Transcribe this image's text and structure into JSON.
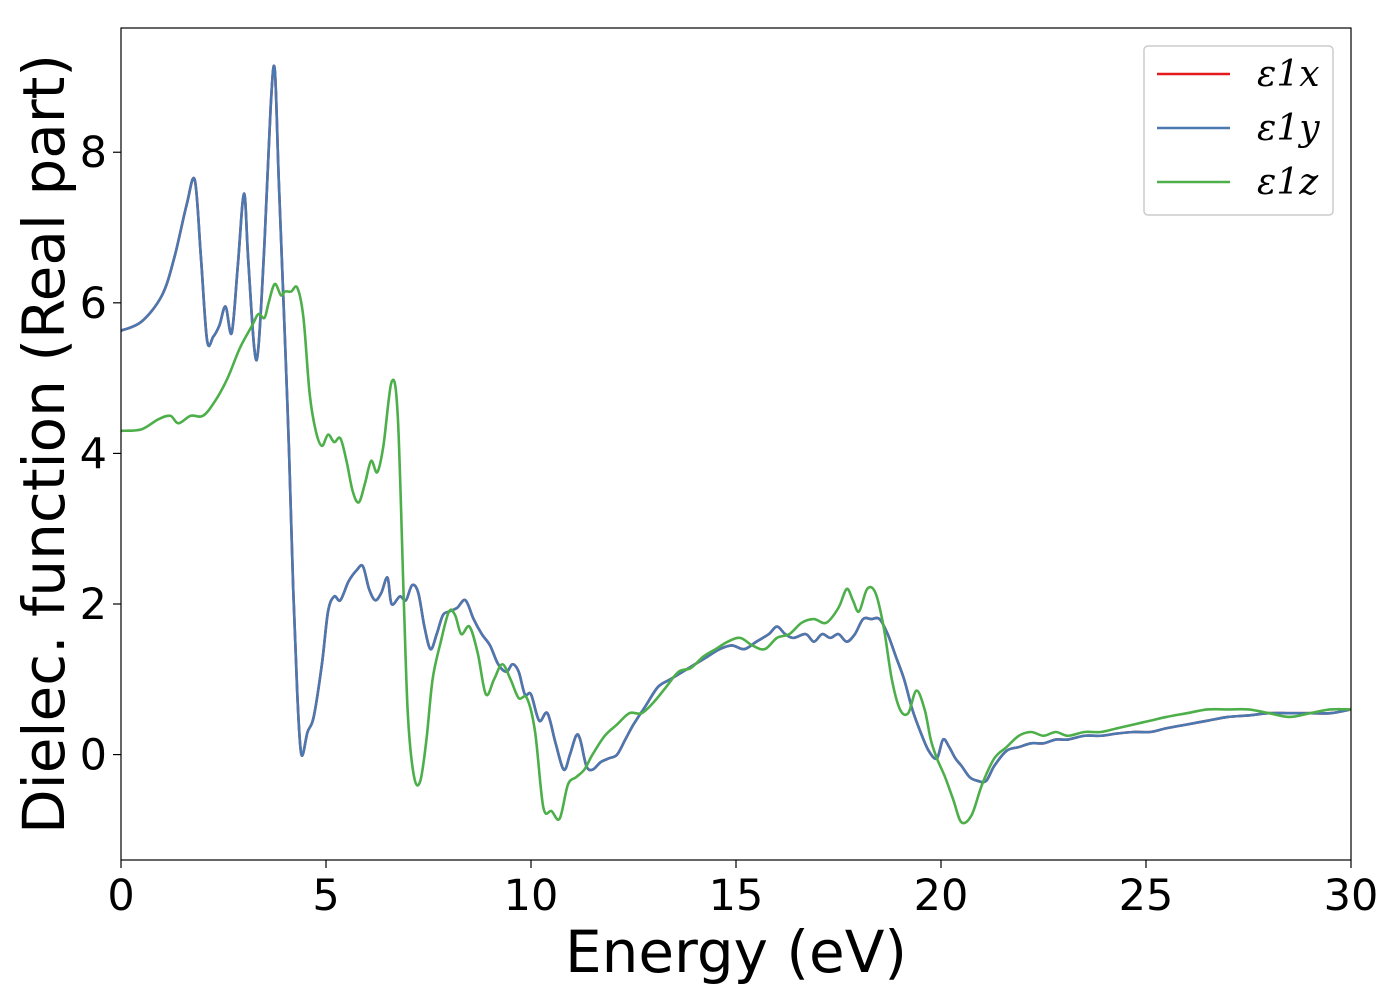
{
  "chart_data": {
    "type": "line",
    "title": "",
    "xlabel": "Energy (eV)",
    "ylabel": "Dielec. function (Real part)",
    "xlim": [
      0,
      30
    ],
    "ylim": [
      -1.4,
      9.65
    ],
    "xticks": [
      0,
      5,
      10,
      15,
      20,
      25,
      30
    ],
    "yticks": [
      0,
      2,
      4,
      6,
      8
    ],
    "grid": false,
    "legend_position": "top-right",
    "series": [
      {
        "name": "ε1x",
        "color": "#e41a1c",
        "x": [
          0,
          0.5,
          1.0,
          1.3,
          1.6,
          1.8,
          1.95,
          2.1,
          2.25,
          2.4,
          2.55,
          2.7,
          2.85,
          3.0,
          3.1,
          3.25,
          3.35,
          3.5,
          3.65,
          3.75,
          3.85,
          4.0,
          4.1,
          4.2,
          4.3,
          4.4,
          4.55,
          4.7,
          4.9,
          5.05,
          5.2,
          5.35,
          5.55,
          5.75,
          5.9,
          6.05,
          6.2,
          6.35,
          6.5,
          6.6,
          6.8,
          6.95,
          7.1,
          7.25,
          7.4,
          7.55,
          7.7,
          7.85,
          8.0,
          8.2,
          8.4,
          8.6,
          8.8,
          9.0,
          9.2,
          9.4,
          9.55,
          9.7,
          9.85,
          10.0,
          10.2,
          10.4,
          10.6,
          10.8,
          10.95,
          11.1,
          11.2,
          11.35,
          11.5,
          11.7,
          11.9,
          12.1,
          12.3,
          12.5,
          12.8,
          13.1,
          13.4,
          13.7,
          14.0,
          14.3,
          14.6,
          14.9,
          15.2,
          15.5,
          15.8,
          16.0,
          16.2,
          16.4,
          16.7,
          16.9,
          17.1,
          17.3,
          17.5,
          17.7,
          17.9,
          18.1,
          18.3,
          18.5,
          18.7,
          18.9,
          19.1,
          19.3,
          19.5,
          19.7,
          19.9,
          20.05,
          20.2,
          20.35,
          20.5,
          20.7,
          20.9,
          21.1,
          21.3,
          21.6,
          21.9,
          22.2,
          22.5,
          22.8,
          23.1,
          23.5,
          23.9,
          24.3,
          24.7,
          25.1,
          25.5,
          26.0,
          26.5,
          27.0,
          27.5,
          28.0,
          28.5,
          29.0,
          29.5,
          30.0
        ],
        "y": [
          5.63,
          5.75,
          6.1,
          6.6,
          7.3,
          7.63,
          6.6,
          5.5,
          5.55,
          5.7,
          5.95,
          5.6,
          6.5,
          7.45,
          6.6,
          5.4,
          5.4,
          6.8,
          8.6,
          9.1,
          7.6,
          5.5,
          4.0,
          2.2,
          0.8,
          0.0,
          0.3,
          0.5,
          1.2,
          1.9,
          2.1,
          2.05,
          2.3,
          2.45,
          2.5,
          2.2,
          2.05,
          2.15,
          2.35,
          2.0,
          2.1,
          2.05,
          2.25,
          2.15,
          1.7,
          1.4,
          1.6,
          1.85,
          1.9,
          1.95,
          2.05,
          1.8,
          1.6,
          1.45,
          1.2,
          1.1,
          1.2,
          1.1,
          0.8,
          0.8,
          0.45,
          0.55,
          0.15,
          -0.2,
          0.0,
          0.25,
          0.2,
          -0.15,
          -0.2,
          -0.1,
          -0.05,
          0.0,
          0.2,
          0.4,
          0.65,
          0.9,
          1.0,
          1.1,
          1.2,
          1.3,
          1.4,
          1.45,
          1.4,
          1.5,
          1.6,
          1.7,
          1.6,
          1.55,
          1.6,
          1.5,
          1.6,
          1.55,
          1.6,
          1.5,
          1.6,
          1.8,
          1.8,
          1.8,
          1.6,
          1.3,
          1.0,
          0.6,
          0.3,
          0.05,
          -0.05,
          0.2,
          0.1,
          -0.05,
          -0.15,
          -0.3,
          -0.35,
          -0.35,
          -0.15,
          0.05,
          0.1,
          0.15,
          0.15,
          0.2,
          0.2,
          0.25,
          0.25,
          0.28,
          0.3,
          0.3,
          0.35,
          0.4,
          0.45,
          0.5,
          0.52,
          0.55,
          0.55,
          0.55,
          0.55,
          0.6
        ]
      },
      {
        "name": "ε1y",
        "color": "#4a78b0",
        "x": [
          0,
          0.5,
          1.0,
          1.3,
          1.6,
          1.8,
          1.95,
          2.1,
          2.25,
          2.4,
          2.55,
          2.7,
          2.85,
          3.0,
          3.1,
          3.25,
          3.35,
          3.5,
          3.65,
          3.75,
          3.85,
          4.0,
          4.1,
          4.2,
          4.3,
          4.4,
          4.55,
          4.7,
          4.9,
          5.05,
          5.2,
          5.35,
          5.55,
          5.75,
          5.9,
          6.05,
          6.2,
          6.35,
          6.5,
          6.6,
          6.8,
          6.95,
          7.1,
          7.25,
          7.4,
          7.55,
          7.7,
          7.85,
          8.0,
          8.2,
          8.4,
          8.6,
          8.8,
          9.0,
          9.2,
          9.4,
          9.55,
          9.7,
          9.85,
          10.0,
          10.2,
          10.4,
          10.6,
          10.8,
          10.95,
          11.1,
          11.2,
          11.35,
          11.5,
          11.7,
          11.9,
          12.1,
          12.3,
          12.5,
          12.8,
          13.1,
          13.4,
          13.7,
          14.0,
          14.3,
          14.6,
          14.9,
          15.2,
          15.5,
          15.8,
          16.0,
          16.2,
          16.4,
          16.7,
          16.9,
          17.1,
          17.3,
          17.5,
          17.7,
          17.9,
          18.1,
          18.3,
          18.5,
          18.7,
          18.9,
          19.1,
          19.3,
          19.5,
          19.7,
          19.9,
          20.05,
          20.2,
          20.35,
          20.5,
          20.7,
          20.9,
          21.1,
          21.3,
          21.6,
          21.9,
          22.2,
          22.5,
          22.8,
          23.1,
          23.5,
          23.9,
          24.3,
          24.7,
          25.1,
          25.5,
          26.0,
          26.5,
          27.0,
          27.5,
          28.0,
          28.5,
          29.0,
          29.5,
          30.0
        ],
        "y": [
          5.63,
          5.75,
          6.1,
          6.6,
          7.3,
          7.63,
          6.6,
          5.5,
          5.55,
          5.7,
          5.95,
          5.6,
          6.5,
          7.45,
          6.6,
          5.4,
          5.4,
          6.8,
          8.6,
          9.1,
          7.6,
          5.5,
          4.0,
          2.2,
          0.8,
          0.0,
          0.3,
          0.5,
          1.2,
          1.9,
          2.1,
          2.05,
          2.3,
          2.45,
          2.5,
          2.2,
          2.05,
          2.15,
          2.35,
          2.0,
          2.1,
          2.05,
          2.25,
          2.15,
          1.7,
          1.4,
          1.6,
          1.85,
          1.9,
          1.95,
          2.05,
          1.8,
          1.6,
          1.45,
          1.2,
          1.1,
          1.2,
          1.1,
          0.8,
          0.8,
          0.45,
          0.55,
          0.15,
          -0.2,
          0.0,
          0.25,
          0.2,
          -0.15,
          -0.2,
          -0.1,
          -0.05,
          0.0,
          0.2,
          0.4,
          0.65,
          0.9,
          1.0,
          1.1,
          1.2,
          1.3,
          1.4,
          1.45,
          1.4,
          1.5,
          1.6,
          1.7,
          1.6,
          1.55,
          1.6,
          1.5,
          1.6,
          1.55,
          1.6,
          1.5,
          1.6,
          1.8,
          1.8,
          1.8,
          1.6,
          1.3,
          1.0,
          0.6,
          0.3,
          0.05,
          -0.05,
          0.2,
          0.1,
          -0.05,
          -0.15,
          -0.3,
          -0.35,
          -0.35,
          -0.15,
          0.05,
          0.1,
          0.15,
          0.15,
          0.2,
          0.2,
          0.25,
          0.25,
          0.28,
          0.3,
          0.3,
          0.35,
          0.4,
          0.45,
          0.5,
          0.52,
          0.55,
          0.55,
          0.55,
          0.55,
          0.6
        ]
      },
      {
        "name": "ε1z",
        "color": "#4daf4a",
        "x": [
          0,
          0.5,
          0.9,
          1.2,
          1.4,
          1.7,
          2.0,
          2.3,
          2.6,
          2.9,
          3.2,
          3.35,
          3.5,
          3.6,
          3.75,
          3.9,
          4.0,
          4.15,
          4.3,
          4.45,
          4.6,
          4.75,
          4.9,
          5.05,
          5.2,
          5.35,
          5.5,
          5.65,
          5.8,
          5.95,
          6.1,
          6.25,
          6.4,
          6.6,
          6.75,
          6.9,
          7.0,
          7.15,
          7.3,
          7.45,
          7.6,
          7.8,
          8.0,
          8.15,
          8.3,
          8.5,
          8.7,
          8.9,
          9.1,
          9.3,
          9.5,
          9.7,
          9.9,
          10.1,
          10.3,
          10.5,
          10.7,
          10.9,
          11.1,
          11.3,
          11.5,
          11.8,
          12.1,
          12.4,
          12.7,
          13.0,
          13.3,
          13.6,
          13.9,
          14.2,
          14.5,
          14.8,
          15.1,
          15.4,
          15.7,
          16.0,
          16.3,
          16.6,
          16.9,
          17.2,
          17.5,
          17.7,
          17.85,
          18.0,
          18.2,
          18.4,
          18.6,
          18.8,
          19.0,
          19.2,
          19.4,
          19.6,
          19.75,
          19.9,
          20.1,
          20.3,
          20.5,
          20.75,
          21.0,
          21.3,
          21.6,
          21.9,
          22.2,
          22.5,
          22.8,
          23.1,
          23.5,
          23.9,
          24.3,
          24.7,
          25.1,
          25.5,
          26.0,
          26.5,
          27.0,
          27.5,
          28.0,
          28.5,
          29.0,
          29.5,
          30.0
        ],
        "y": [
          4.3,
          4.32,
          4.45,
          4.5,
          4.4,
          4.5,
          4.5,
          4.7,
          5.0,
          5.4,
          5.7,
          5.85,
          5.8,
          6.0,
          6.25,
          6.1,
          6.15,
          6.15,
          6.2,
          5.8,
          4.8,
          4.3,
          4.1,
          4.25,
          4.15,
          4.2,
          3.9,
          3.5,
          3.35,
          3.6,
          3.9,
          3.75,
          4.1,
          4.95,
          4.5,
          2.0,
          0.5,
          -0.3,
          -0.35,
          0.2,
          1.0,
          1.5,
          1.9,
          1.85,
          1.6,
          1.7,
          1.35,
          0.8,
          1.0,
          1.2,
          1.0,
          0.75,
          0.75,
          0.3,
          -0.7,
          -0.75,
          -0.85,
          -0.4,
          -0.3,
          -0.2,
          0.0,
          0.25,
          0.4,
          0.55,
          0.55,
          0.7,
          0.9,
          1.1,
          1.15,
          1.3,
          1.4,
          1.5,
          1.55,
          1.45,
          1.4,
          1.55,
          1.6,
          1.75,
          1.8,
          1.75,
          1.95,
          2.2,
          2.05,
          1.9,
          2.2,
          2.15,
          1.7,
          1.0,
          0.6,
          0.55,
          0.85,
          0.6,
          0.2,
          -0.05,
          -0.3,
          -0.6,
          -0.9,
          -0.8,
          -0.4,
          -0.05,
          0.1,
          0.25,
          0.3,
          0.25,
          0.3,
          0.25,
          0.3,
          0.3,
          0.35,
          0.4,
          0.45,
          0.5,
          0.55,
          0.6,
          0.6,
          0.6,
          0.55,
          0.5,
          0.55,
          0.6,
          0.6
        ]
      }
    ]
  }
}
